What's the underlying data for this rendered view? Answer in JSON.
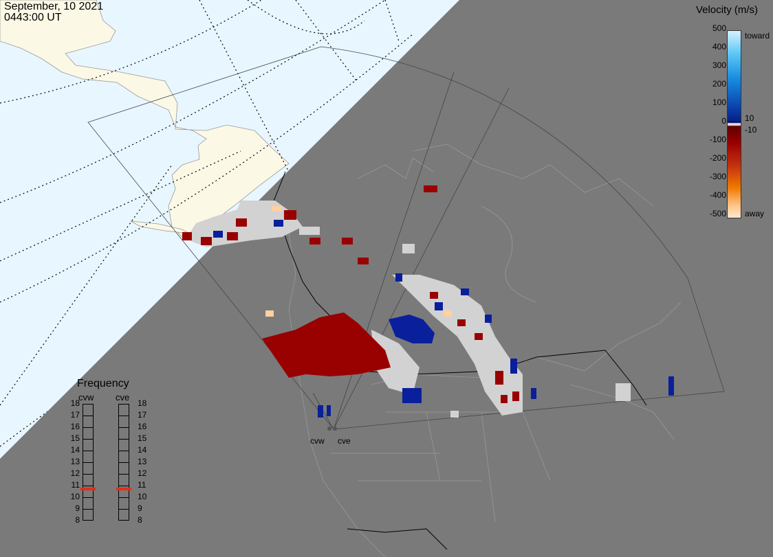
{
  "header": {
    "date": "September, 10 2021",
    "time": "0443:00 UT"
  },
  "velocity_scale": {
    "title": "Velocity (m/s)",
    "ticks": [
      "500",
      "400",
      "300",
      "200",
      "100",
      "10",
      "0",
      "-10",
      "-100",
      "-200",
      "-300",
      "-400",
      "-500"
    ],
    "toward_label": "toward",
    "away_label": "away"
  },
  "frequency_panel": {
    "title": "Frequency",
    "radars": [
      {
        "name": "cvw",
        "value": 10.7
      },
      {
        "name": "cve",
        "value": 10.7
      }
    ],
    "levels": [
      "18",
      "17",
      "16",
      "15",
      "14",
      "13",
      "12",
      "11",
      "10",
      "9",
      "8"
    ]
  },
  "sites": {
    "west": "cvw",
    "east": "cve"
  },
  "colors": {
    "ocean": "#e8f6ff",
    "land_sunlit": "#fbf8e6",
    "night": "#7a7a7a",
    "toward": "#0a1f9c",
    "away": "#990000",
    "ground_scatter": "#d2d2d2",
    "frequency_marker": "#e0301a"
  }
}
